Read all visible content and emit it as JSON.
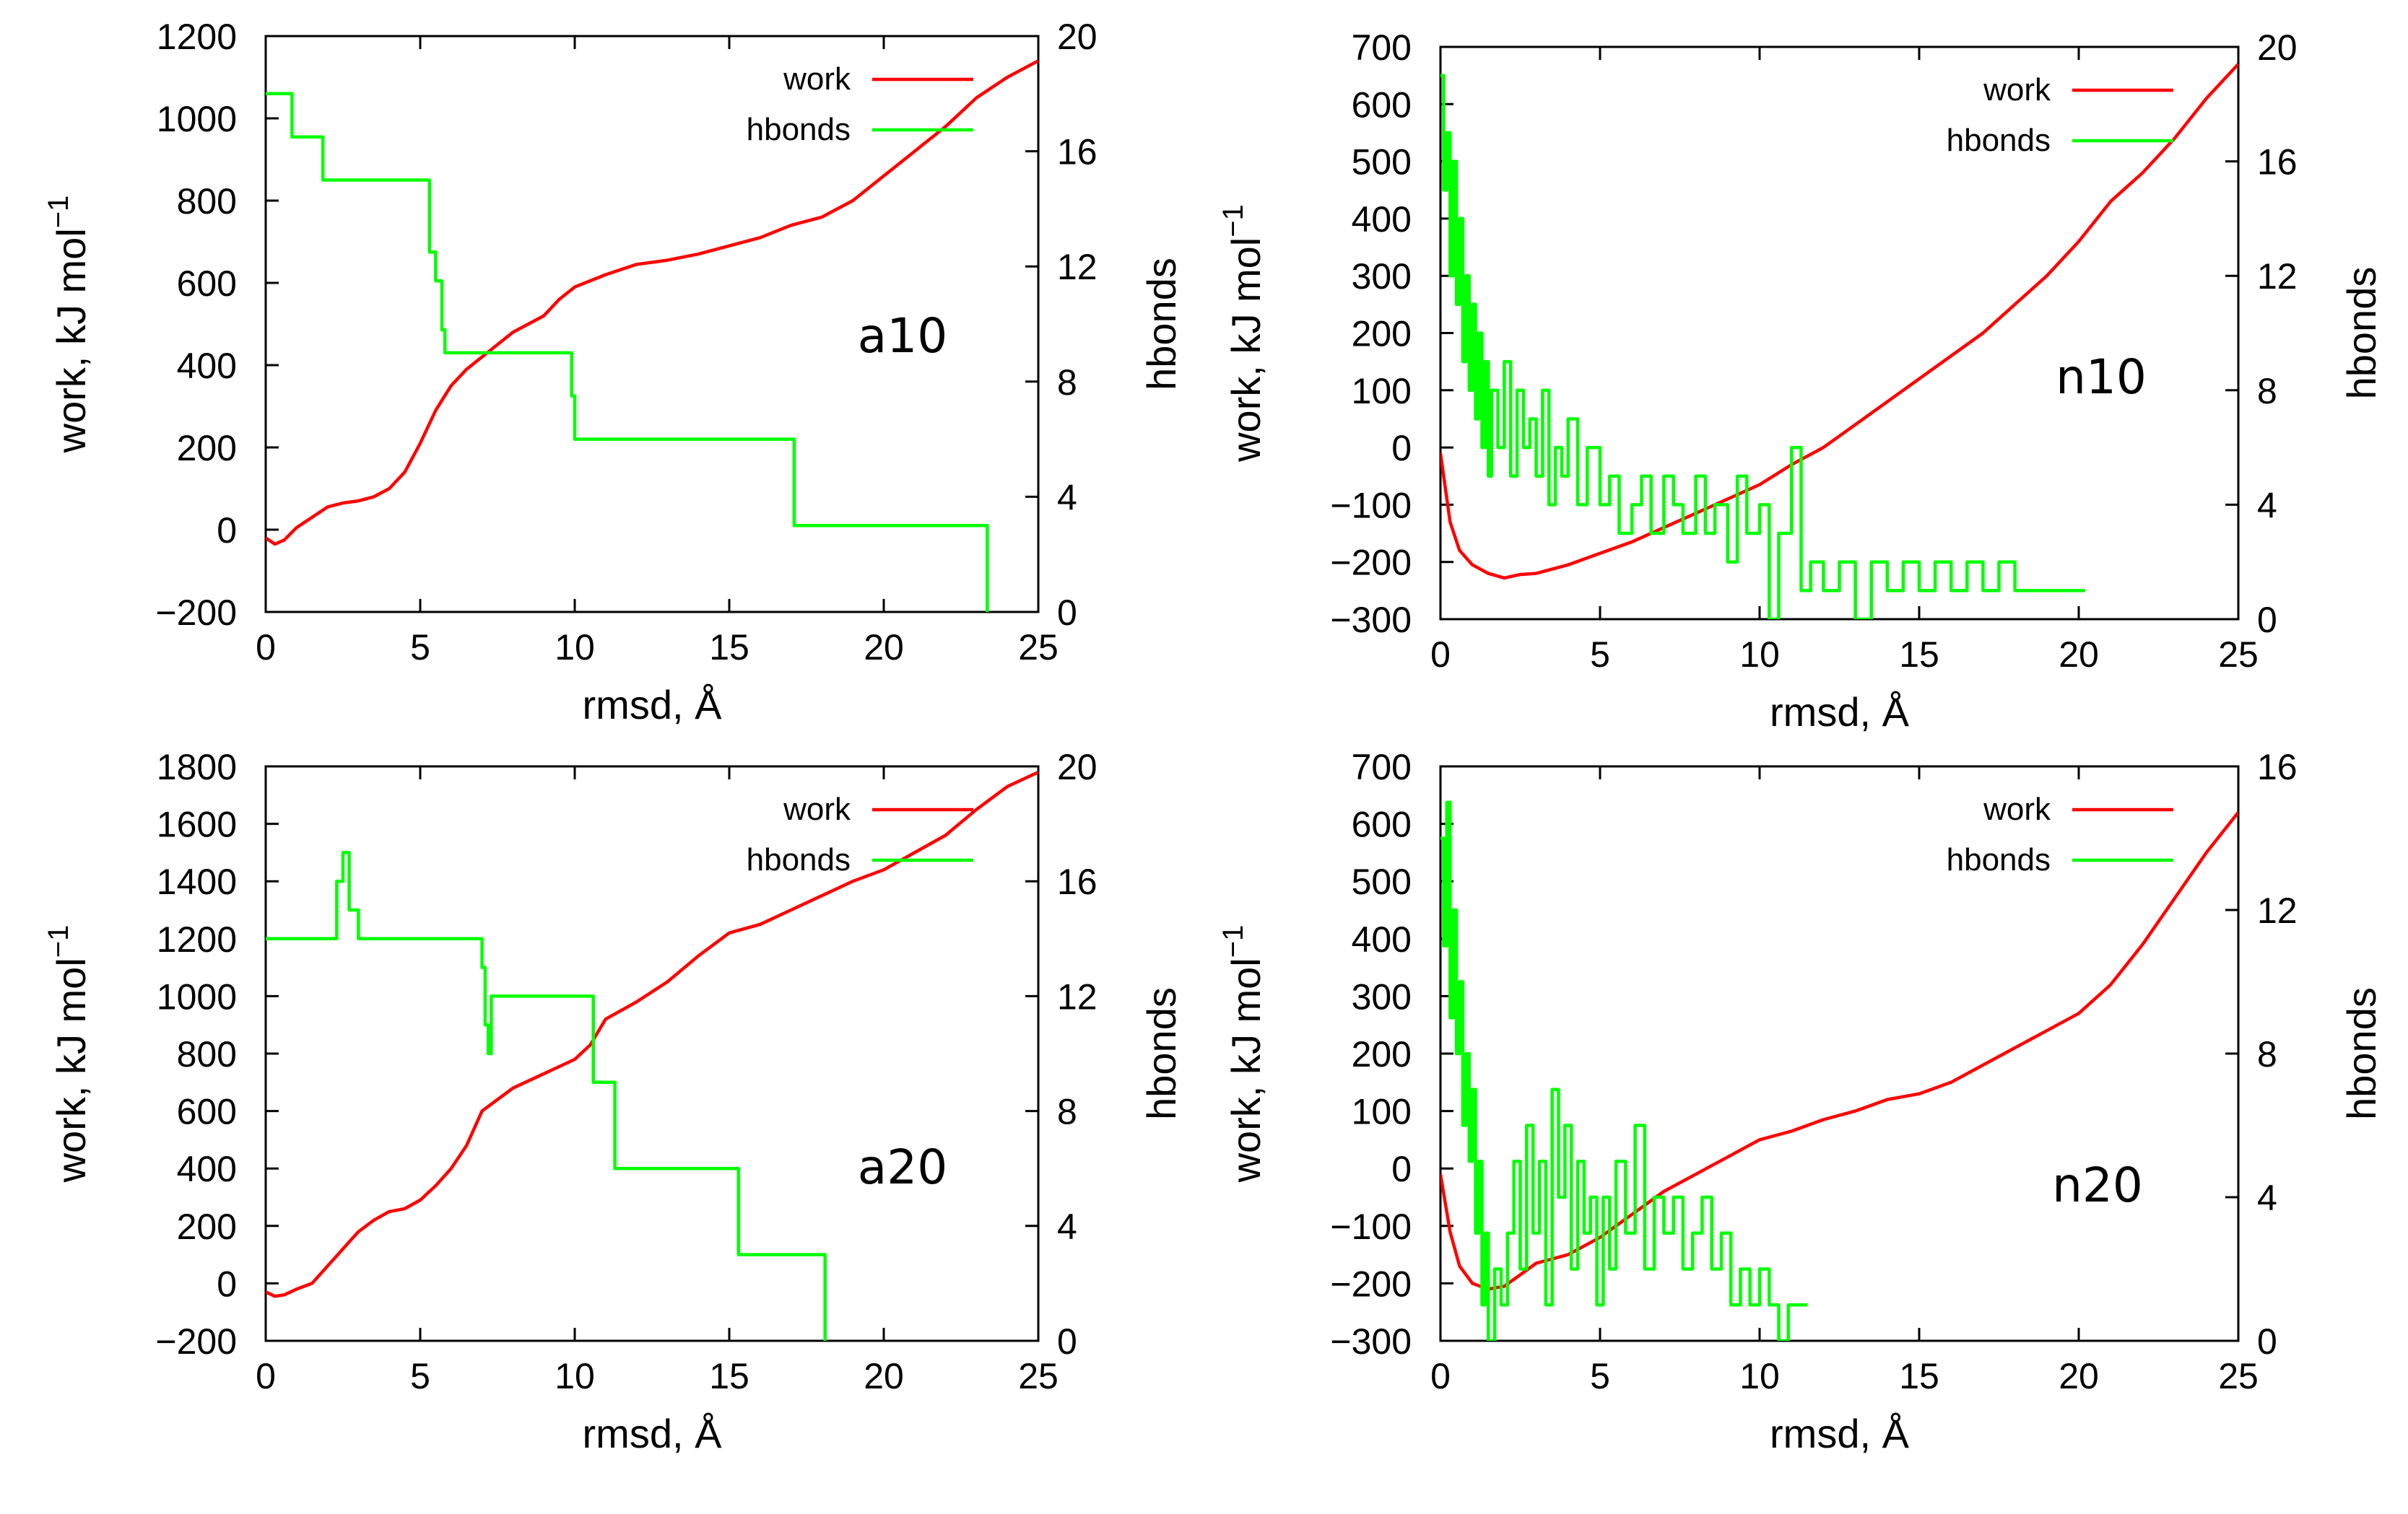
{
  "colors": {
    "work": "#ff0000",
    "hbonds": "#00ff00",
    "axes": "#000000",
    "background": "#ffffff"
  },
  "chart_data": [
    {
      "type": "line",
      "panel_label": "a10",
      "xlabel": "rmsd, Å",
      "ylabel": "work, kJ mol",
      "ylabel_superscript": "−1",
      "y2label": "hbonds",
      "xlim": [
        0,
        25
      ],
      "ylim": [
        -200,
        1200
      ],
      "y2lim": [
        0,
        20
      ],
      "xticks": [
        0,
        5,
        10,
        15,
        20,
        25
      ],
      "yticks": [
        -200,
        0,
        200,
        400,
        600,
        800,
        1000,
        1200
      ],
      "y2ticks": [
        0,
        4,
        8,
        12,
        16,
        20
      ],
      "xtick_labels": [
        "0",
        "5",
        "10",
        "15",
        "20",
        "25"
      ],
      "ytick_labels": [
        "−200",
        "0",
        "200",
        "400",
        "600",
        "800",
        "1000",
        "1200"
      ],
      "y2tick_labels": [
        "0",
        "4",
        "8",
        "12",
        "16",
        "20"
      ],
      "grid": false,
      "legend_position": "top-right",
      "series": [
        {
          "name": "work",
          "axis": "left",
          "x": [
            0,
            0.3,
            0.6,
            1,
            1.5,
            2,
            2.5,
            3,
            3.5,
            4,
            4.5,
            5,
            5.5,
            6,
            6.5,
            7,
            7.5,
            8,
            8.5,
            9,
            9.5,
            10,
            11,
            12,
            13,
            14,
            15,
            16,
            17,
            18,
            19,
            20,
            21,
            22,
            23,
            24,
            25
          ],
          "y": [
            -20,
            -35,
            -25,
            5,
            30,
            55,
            65,
            70,
            80,
            100,
            140,
            210,
            290,
            350,
            390,
            420,
            450,
            480,
            500,
            520,
            560,
            590,
            620,
            645,
            655,
            670,
            690,
            710,
            740,
            760,
            800,
            860,
            920,
            980,
            1050,
            1100,
            1140
          ]
        },
        {
          "name": "hbonds",
          "axis": "right",
          "x": [
            0,
            0.8,
            0.85,
            1.8,
            1.85,
            5.0,
            5.3,
            5.5,
            5.7,
            5.8,
            9.8,
            9.9,
            10.0,
            17.0,
            17.1,
            23.3,
            23.35
          ],
          "y": [
            18,
            18,
            16.5,
            16.5,
            15,
            15,
            12.5,
            11.5,
            9.8,
            9,
            9,
            7.5,
            6,
            6,
            3,
            3,
            0
          ]
        }
      ]
    },
    {
      "type": "line",
      "panel_label": "n10",
      "xlabel": "rmsd, Å",
      "ylabel": "work, kJ mol",
      "ylabel_superscript": "−1",
      "y2label": "hbonds",
      "xlim": [
        0,
        25
      ],
      "ylim": [
        -300,
        700
      ],
      "y2lim": [
        0,
        20
      ],
      "xticks": [
        0,
        5,
        10,
        15,
        20,
        25
      ],
      "yticks": [
        -300,
        -200,
        -100,
        0,
        100,
        200,
        300,
        400,
        500,
        600,
        700
      ],
      "y2ticks": [
        0,
        4,
        8,
        12,
        16,
        20
      ],
      "xtick_labels": [
        "0",
        "5",
        "10",
        "15",
        "20",
        "25"
      ],
      "ytick_labels": [
        "−300",
        "−200",
        "−100",
        "0",
        "100",
        "200",
        "300",
        "400",
        "500",
        "600",
        "700"
      ],
      "y2tick_labels": [
        "0",
        "4",
        "8",
        "12",
        "16",
        "20"
      ],
      "grid": false,
      "legend_position": "top-right",
      "series": [
        {
          "name": "work",
          "axis": "left",
          "x": [
            0,
            0.3,
            0.6,
            1,
            1.5,
            2,
            2.5,
            3,
            4,
            5,
            6,
            7,
            8,
            9,
            10,
            11,
            12,
            13,
            14,
            15,
            16,
            17,
            18,
            19,
            20,
            21,
            22,
            23,
            24,
            25
          ],
          "y": [
            -10,
            -130,
            -180,
            -205,
            -220,
            -228,
            -222,
            -220,
            -205,
            -185,
            -165,
            -140,
            -115,
            -90,
            -65,
            -30,
            0,
            40,
            80,
            120,
            160,
            200,
            250,
            300,
            360,
            430,
            480,
            540,
            610,
            670
          ]
        },
        {
          "name": "hbonds",
          "axis": "right",
          "x": [
            0,
            0.1,
            0.2,
            0.3,
            0.4,
            0.5,
            0.6,
            0.7,
            0.8,
            0.9,
            1.0,
            1.1,
            1.2,
            1.3,
            1.4,
            1.5,
            1.6,
            1.8,
            2.0,
            2.2,
            2.4,
            2.6,
            2.8,
            3.0,
            3.2,
            3.4,
            3.6,
            3.8,
            4.0,
            4.3,
            4.6,
            5.0,
            5.3,
            5.6,
            6.0,
            6.3,
            6.6,
            7.0,
            7.3,
            7.6,
            8.0,
            8.3,
            8.6,
            9.0,
            9.3,
            9.6,
            10.0,
            10.3,
            10.6,
            11.0,
            11.3,
            11.6,
            12.0,
            12.5,
            13.0,
            13.5,
            14.0,
            14.5,
            15.0,
            15.5,
            16.0,
            16.5,
            17.0,
            17.5,
            18.0,
            18.5,
            19.0,
            19.5,
            20.0,
            20.2
          ],
          "y": [
            19,
            15,
            17,
            12,
            16,
            11,
            14,
            9,
            12,
            8,
            11,
            7,
            10,
            6,
            9,
            5,
            8,
            6,
            9,
            5,
            8,
            6,
            7,
            5,
            8,
            4,
            6,
            5,
            7,
            4,
            6,
            4,
            5,
            3,
            4,
            5,
            3,
            5,
            4,
            3,
            5,
            3,
            4,
            2,
            5,
            3,
            4,
            0,
            3,
            6,
            1,
            2,
            1,
            2,
            0,
            2,
            1,
            2,
            1,
            2,
            1,
            2,
            1,
            2,
            1,
            1,
            1,
            1,
            1,
            1
          ]
        }
      ]
    },
    {
      "type": "line",
      "panel_label": "a20",
      "xlabel": "rmsd, Å",
      "ylabel": "work, kJ mol",
      "ylabel_superscript": "−1",
      "y2label": "hbonds",
      "xlim": [
        0,
        25
      ],
      "ylim": [
        -200,
        1800
      ],
      "y2lim": [
        0,
        20
      ],
      "xticks": [
        0,
        5,
        10,
        15,
        20,
        25
      ],
      "yticks": [
        -200,
        0,
        200,
        400,
        600,
        800,
        1000,
        1200,
        1400,
        1600,
        1800
      ],
      "y2ticks": [
        0,
        4,
        8,
        12,
        16,
        20
      ],
      "xtick_labels": [
        "0",
        "5",
        "10",
        "15",
        "20",
        "25"
      ],
      "ytick_labels": [
        "−200",
        "0",
        "200",
        "400",
        "600",
        "800",
        "1000",
        "1200",
        "1400",
        "1600",
        "1800"
      ],
      "y2tick_labels": [
        "0",
        "4",
        "8",
        "12",
        "16",
        "20"
      ],
      "grid": false,
      "legend_position": "top-right",
      "series": [
        {
          "name": "work",
          "axis": "left",
          "x": [
            0,
            0.3,
            0.6,
            1,
            1.5,
            2,
            2.5,
            3,
            3.5,
            4,
            4.5,
            5,
            5.5,
            6,
            6.5,
            7,
            7.5,
            8,
            9,
            10,
            10.5,
            11,
            12,
            13,
            14,
            15,
            16,
            17,
            18,
            19,
            20,
            21,
            22,
            23,
            24,
            25
          ],
          "y": [
            -30,
            -45,
            -40,
            -20,
            0,
            60,
            120,
            180,
            220,
            250,
            260,
            290,
            340,
            400,
            480,
            600,
            640,
            680,
            730,
            780,
            830,
            920,
            980,
            1050,
            1140,
            1220,
            1250,
            1300,
            1350,
            1400,
            1440,
            1500,
            1560,
            1650,
            1730,
            1780
          ]
        },
        {
          "name": "hbonds",
          "axis": "right",
          "x": [
            0,
            0.5,
            1.0,
            1.5,
            2.0,
            2.3,
            2.5,
            2.7,
            3.0,
            3.5,
            4.0,
            5.0,
            6.0,
            6.8,
            7.0,
            7.1,
            7.2,
            7.3,
            8.0,
            9.0,
            10.5,
            10.6,
            11.2,
            11.3,
            15.0,
            15.3,
            17.0,
            18.0,
            18.1
          ],
          "y": [
            14,
            14,
            14,
            14,
            14,
            16,
            17,
            15,
            14,
            14,
            14,
            14,
            14,
            14,
            13,
            11,
            10,
            12,
            12,
            12,
            12,
            9,
            9,
            6,
            6,
            3,
            3,
            3,
            0
          ]
        }
      ]
    },
    {
      "type": "line",
      "panel_label": "n20",
      "xlabel": "rmsd, Å",
      "ylabel": "work, kJ mol",
      "ylabel_superscript": "−1",
      "y2label": "hbonds",
      "xlim": [
        0,
        25
      ],
      "ylim": [
        -300,
        700
      ],
      "y2lim": [
        0,
        16
      ],
      "xticks": [
        0,
        5,
        10,
        15,
        20,
        25
      ],
      "yticks": [
        -300,
        -200,
        -100,
        0,
        100,
        200,
        300,
        400,
        500,
        600,
        700
      ],
      "y2ticks": [
        0,
        4,
        8,
        12,
        16
      ],
      "xtick_labels": [
        "0",
        "5",
        "10",
        "15",
        "20",
        "25"
      ],
      "ytick_labels": [
        "−300",
        "−200",
        "−100",
        "0",
        "100",
        "200",
        "300",
        "400",
        "500",
        "600",
        "700"
      ],
      "y2tick_labels": [
        "0",
        "4",
        "8",
        "12",
        "16"
      ],
      "grid": false,
      "legend_position": "top-right",
      "series": [
        {
          "name": "work",
          "axis": "left",
          "x": [
            0,
            0.3,
            0.6,
            1,
            1.5,
            2,
            2.5,
            3,
            4,
            5,
            6,
            7,
            8,
            9,
            10,
            11,
            12,
            13,
            14,
            15,
            16,
            17,
            18,
            19,
            20,
            21,
            22,
            23,
            24,
            25
          ],
          "y": [
            -10,
            -110,
            -170,
            -200,
            -210,
            -205,
            -185,
            -165,
            -150,
            -120,
            -80,
            -40,
            -10,
            20,
            50,
            65,
            85,
            100,
            120,
            130,
            150,
            180,
            210,
            240,
            270,
            320,
            390,
            470,
            550,
            620
          ]
        },
        {
          "name": "hbonds",
          "axis": "right",
          "x": [
            0,
            0.1,
            0.2,
            0.3,
            0.4,
            0.5,
            0.6,
            0.7,
            0.8,
            0.9,
            1.0,
            1.1,
            1.2,
            1.3,
            1.4,
            1.5,
            1.7,
            1.9,
            2.1,
            2.3,
            2.5,
            2.7,
            2.9,
            3.1,
            3.3,
            3.5,
            3.7,
            3.9,
            4.1,
            4.3,
            4.5,
            4.7,
            4.9,
            5.1,
            5.3,
            5.5,
            5.8,
            6.1,
            6.4,
            6.7,
            7.0,
            7.3,
            7.6,
            7.9,
            8.2,
            8.5,
            8.8,
            9.1,
            9.4,
            9.7,
            10.0,
            10.3,
            10.6,
            10.9,
            11.2,
            11.5
          ],
          "y": [
            14,
            11,
            15,
            9,
            12,
            8,
            10,
            6,
            8,
            5,
            7,
            3,
            5,
            1,
            3,
            0,
            2,
            1,
            3,
            5,
            2,
            6,
            3,
            5,
            1,
            7,
            4,
            6,
            2,
            5,
            3,
            4,
            1,
            4,
            2,
            5,
            3,
            6,
            2,
            4,
            3,
            4,
            2,
            3,
            4,
            2,
            3,
            1,
            2,
            1,
            2,
            1,
            0,
            1,
            1,
            1
          ]
        }
      ]
    }
  ]
}
